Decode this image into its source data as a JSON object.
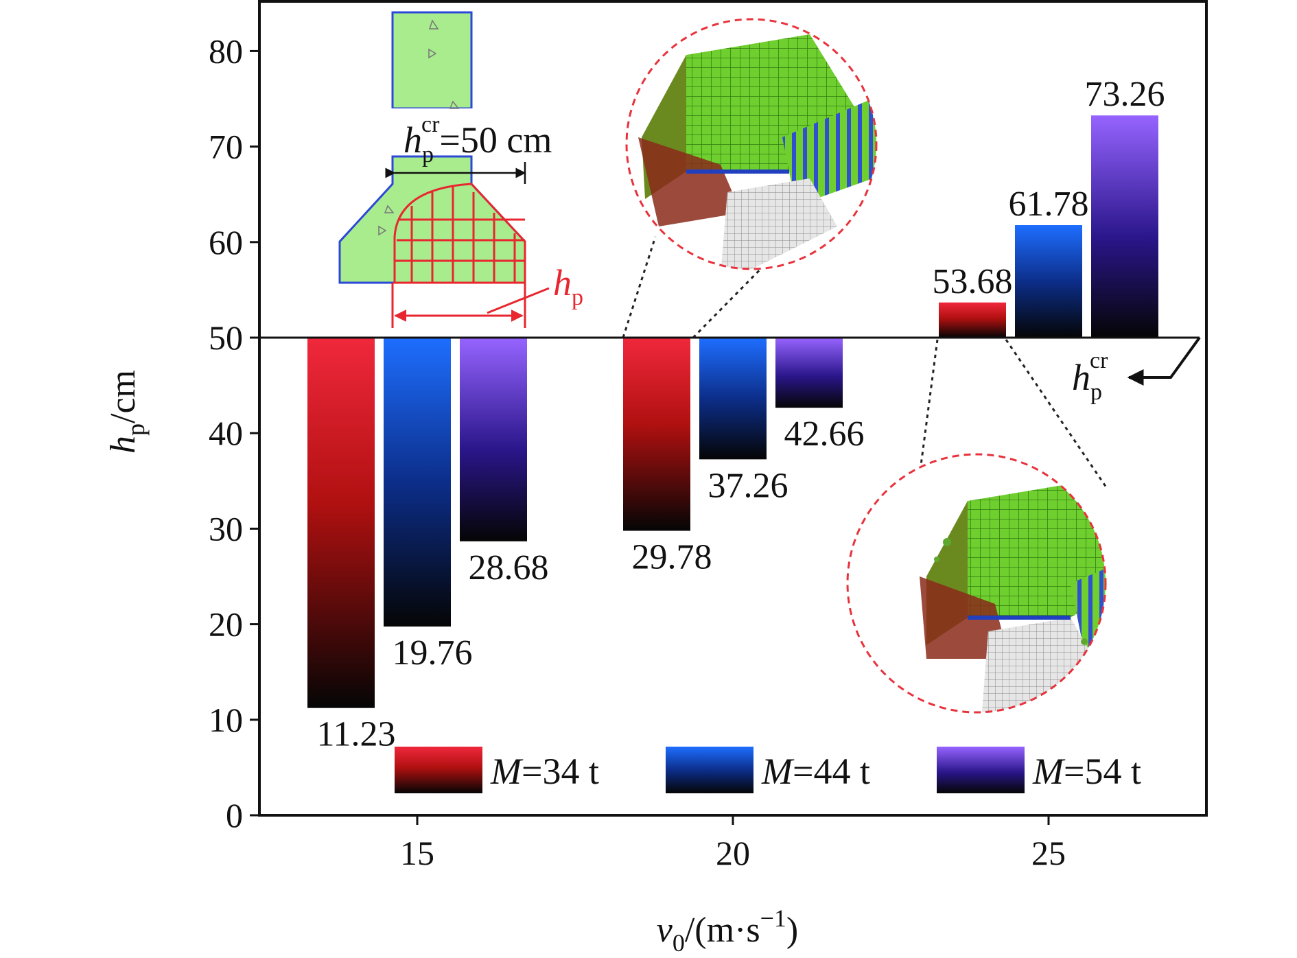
{
  "chart_data": {
    "type": "bar",
    "baseline": 50,
    "ylim": [
      0,
      85
    ],
    "yticks": [
      0,
      10,
      20,
      30,
      40,
      50,
      60,
      70,
      80
    ],
    "xlim": [
      12.5,
      27.5
    ],
    "xticks": [
      15,
      20,
      25
    ],
    "xlabel": {
      "var": "v",
      "sub": "0",
      "rest": "/(m·s",
      "sup": "−1",
      "close": ")"
    },
    "ylabel": {
      "var": "h",
      "sub": "p",
      "rest": "/cm"
    },
    "legend_position": "bottom-center",
    "series": [
      {
        "name": "M=34 t",
        "name_var": "M",
        "name_rest": "=34 t",
        "color": "#f0283c",
        "values": [
          11.23,
          29.78,
          53.68
        ]
      },
      {
        "name": "M=44 t",
        "name_var": "M",
        "name_rest": "=44 t",
        "color": "#1e6eff",
        "values": [
          19.76,
          37.26,
          61.78
        ]
      },
      {
        "name": "M=54 t",
        "name_var": "M",
        "name_rest": "=54 t",
        "color": "#9664ff",
        "values": [
          28.68,
          42.66,
          73.26
        ]
      }
    ],
    "annotations": {
      "critical_label": {
        "var": "h",
        "sub": "p",
        "sup": "cr",
        "text": "=50 cm"
      },
      "critical_marker": {
        "var": "h",
        "sub": "p",
        "sup": "cr"
      },
      "inset_label": {
        "var": "h",
        "sub": "p"
      }
    }
  }
}
